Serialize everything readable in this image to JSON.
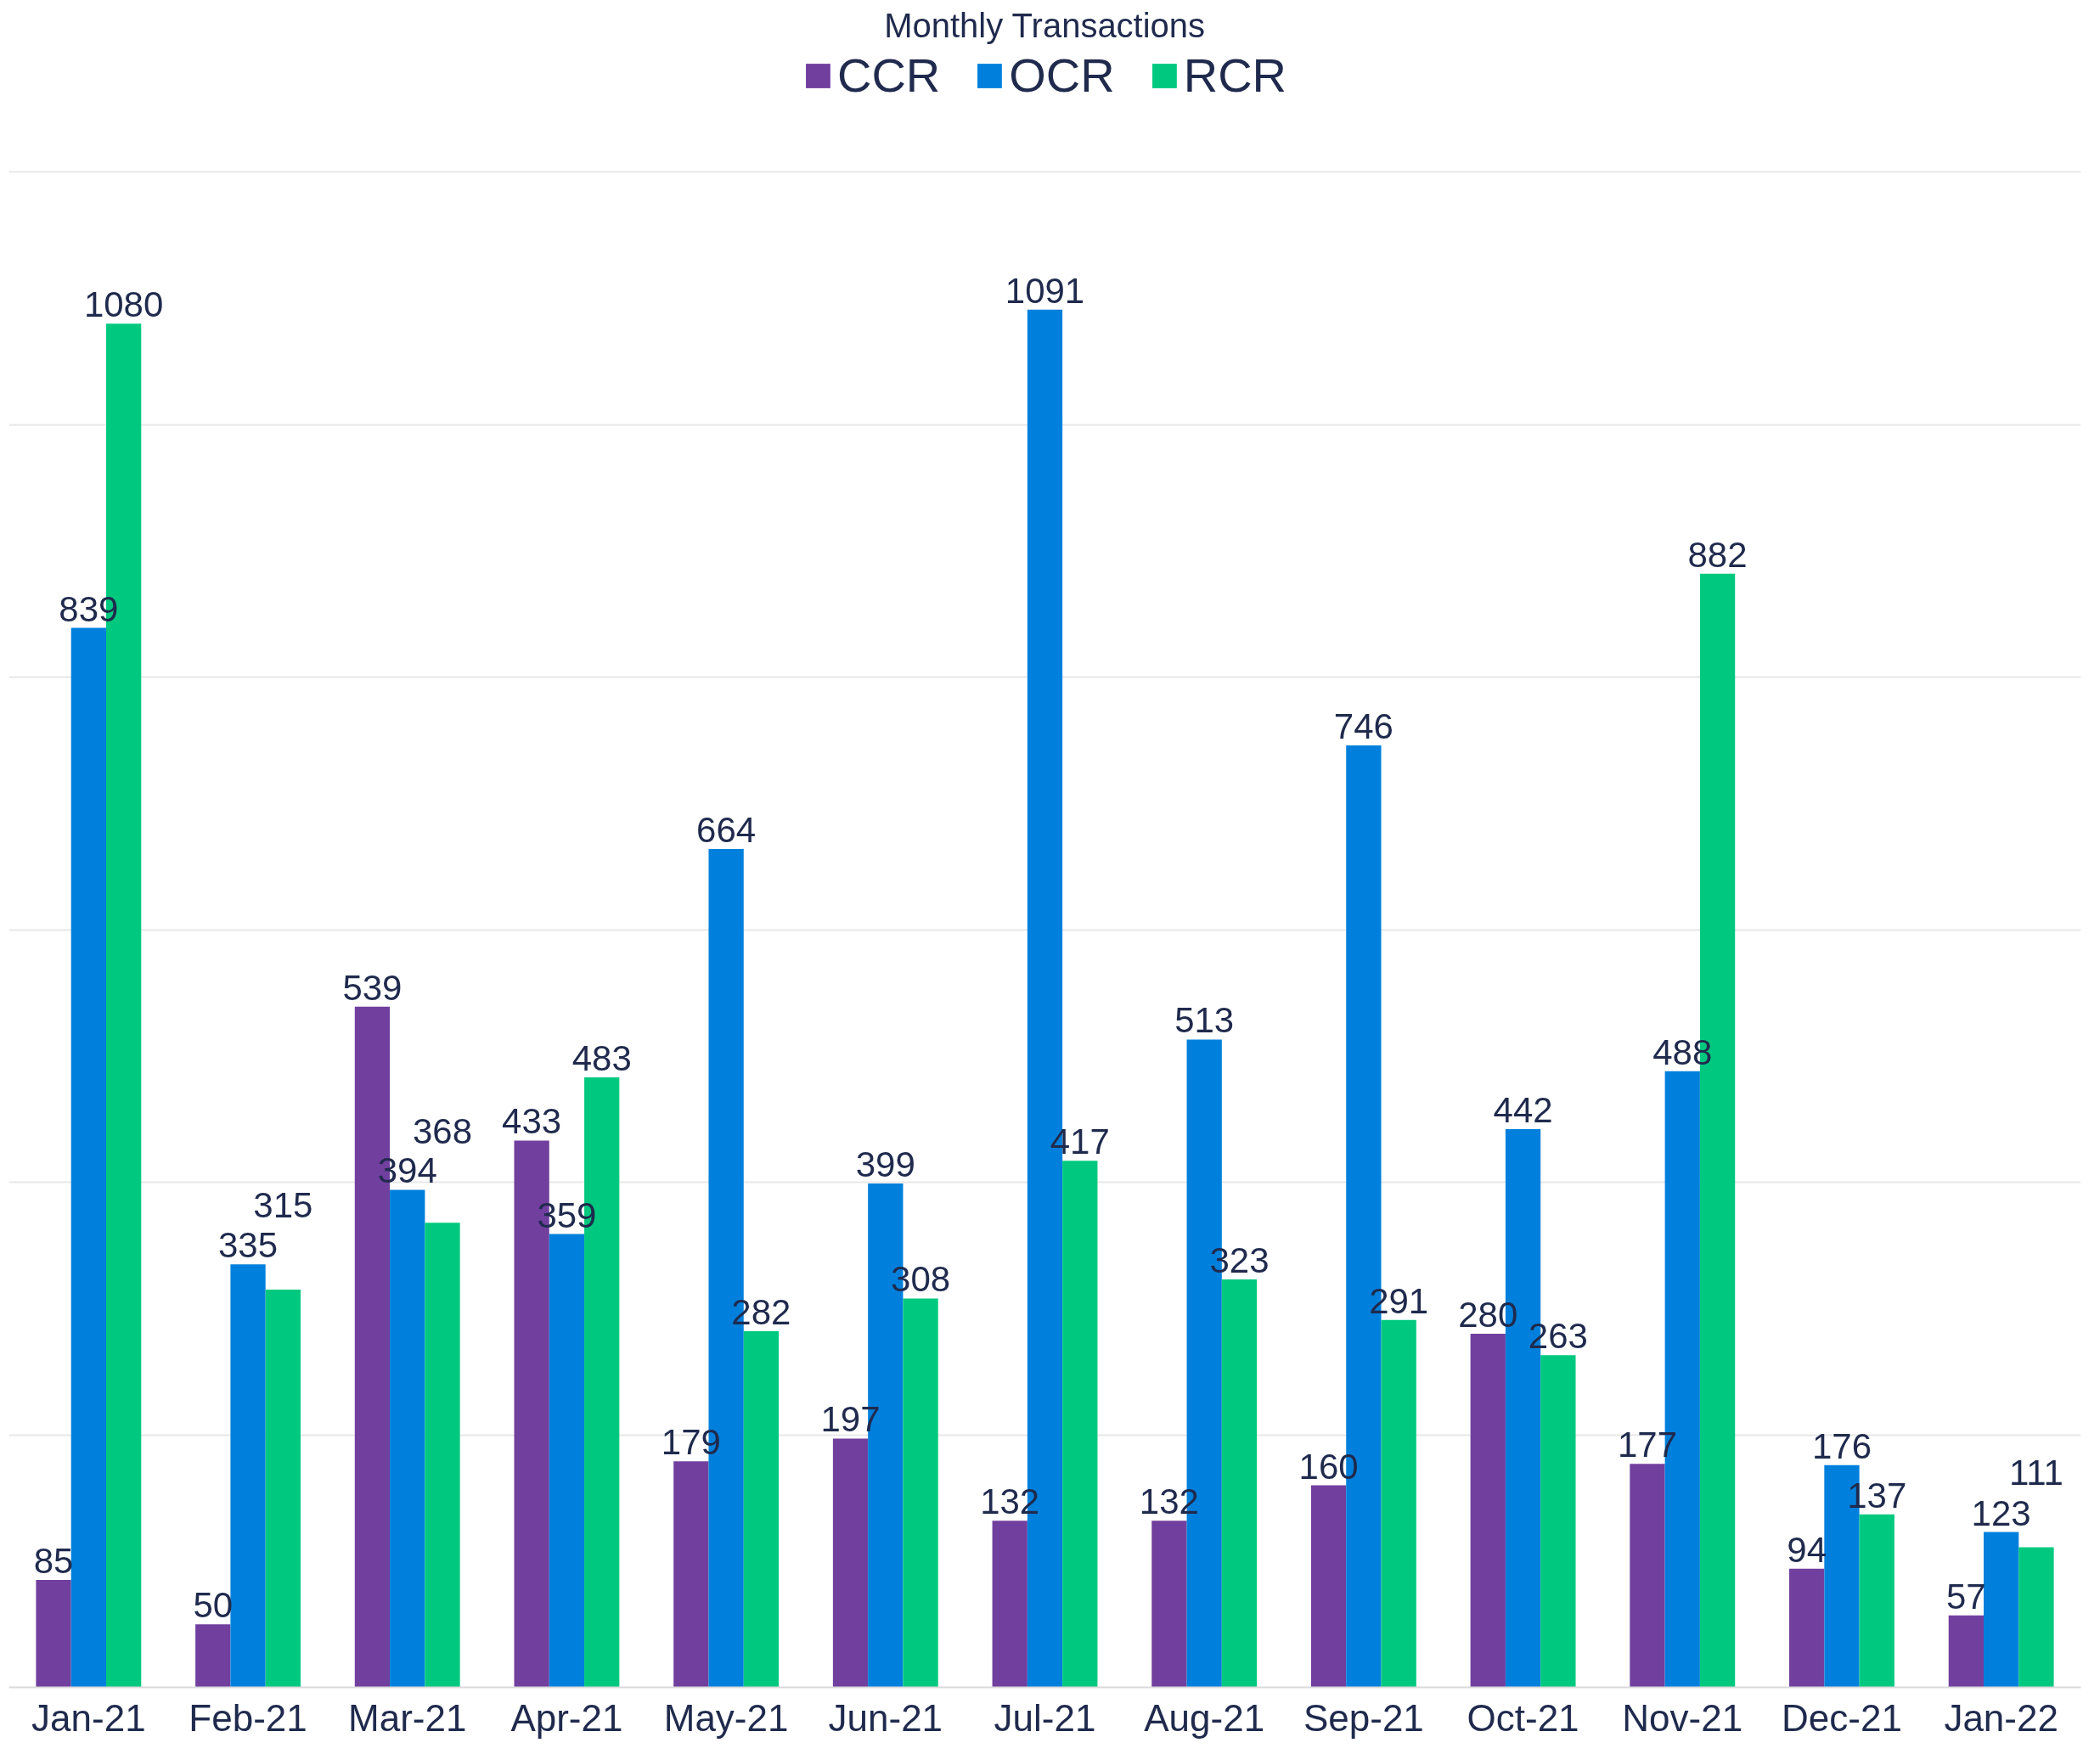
{
  "chart_data": {
    "type": "bar",
    "title": "Monthly Transactions",
    "categories": [
      "Jan-21",
      "Feb-21",
      "Mar-21",
      "Apr-21",
      "May-21",
      "Jun-21",
      "Jul-21",
      "Aug-21",
      "Sep-21",
      "Oct-21",
      "Nov-21",
      "Dec-21",
      "Jan-22"
    ],
    "series": [
      {
        "name": "CCR",
        "color": "#713f9e",
        "values": [
          85,
          50,
          539,
          433,
          179,
          197,
          132,
          132,
          160,
          280,
          177,
          94,
          57
        ]
      },
      {
        "name": "OCR",
        "color": "#0080dc",
        "values": [
          839,
          335,
          394,
          359,
          664,
          399,
          1091,
          513,
          746,
          442,
          488,
          176,
          123
        ]
      },
      {
        "name": "RCR",
        "color": "#00c97f",
        "values": [
          1080,
          315,
          368,
          483,
          282,
          308,
          417,
          323,
          291,
          263,
          882,
          137,
          111
        ]
      }
    ],
    "grid": "y",
    "legend": "top",
    "tick_labels": "x",
    "data_labels": true
  }
}
